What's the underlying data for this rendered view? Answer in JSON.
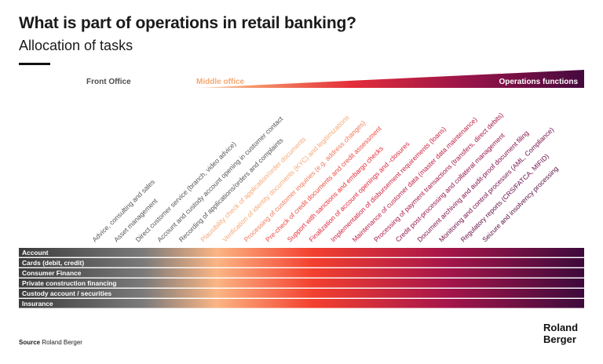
{
  "header": {
    "title": "What is part of operations in retail banking?",
    "subtitle": "Allocation of tasks"
  },
  "phases": [
    {
      "label": "Front Office",
      "color": "#4d4d4d"
    },
    {
      "label": "Middle office",
      "color": "#f5a875"
    },
    {
      "label": "Operations functions",
      "color": "#ffffff"
    }
  ],
  "tasks": [
    {
      "label": "Advice, consulting and sales",
      "color": "#555555"
    },
    {
      "label": "Asset management",
      "color": "#555555"
    },
    {
      "label": "Direct customer service (branch, video advice)",
      "color": "#555555"
    },
    {
      "label": "Account and custody account opening in customer contact",
      "color": "#555555"
    },
    {
      "label": "Recording of applications/orders and complaints",
      "color": "#555555"
    },
    {
      "label": "Plausibility check of application/order documents",
      "color": "#f5a878"
    },
    {
      "label": "Verification of identity documents (KYC) and legitimizations",
      "color": "#f5a878"
    },
    {
      "label": "Processing of customer inquiries (e.g. address changes)",
      "color": "#f07a5a"
    },
    {
      "label": "Pre-check of credit documents and credit assessment",
      "color": "#ee4a3f"
    },
    {
      "label": "Support with sanctions and embargo checks",
      "color": "#ea2e35"
    },
    {
      "label": "Finalization of account openings and -closures",
      "color": "#e0283c"
    },
    {
      "label": "Implementation of disbursement requirements (loans)",
      "color": "#cf2240"
    },
    {
      "label": "Maintenance of customer data (master data maintenance)",
      "color": "#c01c44"
    },
    {
      "label": "Processing of payment transactions (transfers, direct debits)",
      "color": "#a91748"
    },
    {
      "label": "Credit post-processing and collateral management",
      "color": "#94144a"
    },
    {
      "label": "Document archiving and audit-proof document filing",
      "color": "#84114a"
    },
    {
      "label": "Monitoring and control processes (AML, Compliance)",
      "color": "#740f48"
    },
    {
      "label": "Regulatory reports (CRS/FATCA, MIFID)",
      "color": "#640d46"
    },
    {
      "label": "Seizure and insolvency processing",
      "color": "#560b42"
    }
  ],
  "rows": [
    {
      "label": "Account"
    },
    {
      "label": "Cards (debit, credit)"
    },
    {
      "label": "Consumer Finance"
    },
    {
      "label": "Private construction financing"
    },
    {
      "label": "Custody account / securities"
    },
    {
      "label": "Insurance"
    }
  ],
  "colors": {
    "gradient": [
      "#3c3c3c",
      "#767676",
      "#fbb584",
      "#f3402f",
      "#a8164a",
      "#3d0a3c"
    ]
  },
  "footer": {
    "source_label": "Source",
    "source_text": "Roland Berger",
    "logo_line1": "Roland",
    "logo_line2": "Berger"
  }
}
